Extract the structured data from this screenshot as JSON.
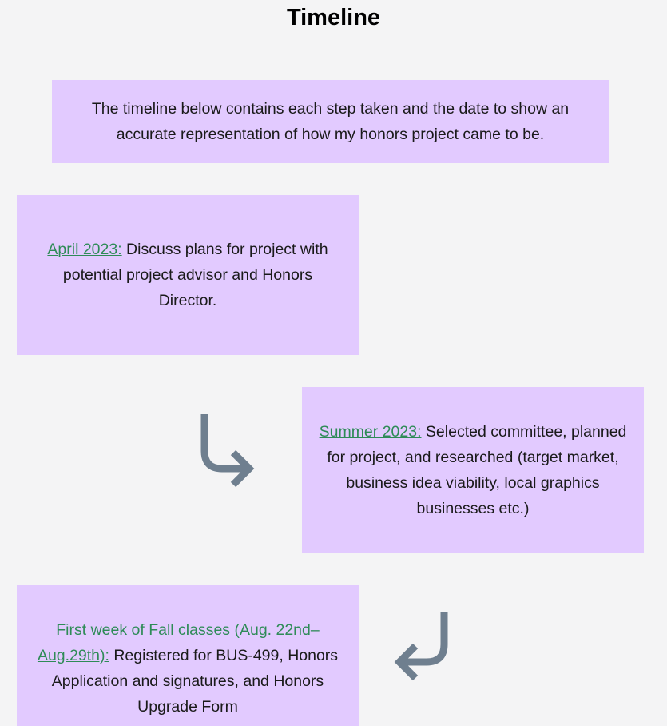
{
  "page": {
    "title": "Timeline"
  },
  "intro": {
    "text": "The timeline below contains each step taken and the date to show an accurate representation of how my honors project came to be."
  },
  "steps": [
    {
      "date": "April 2023:",
      "text": " Discuss plans for project with potential project advisor and Honors Director."
    },
    {
      "date": "Summer 2023:",
      "text": " Selected committee, planned for project, and researched (target market, business idea viability, local graphics businesses etc.)"
    },
    {
      "date": "First week of Fall classes (Aug. 22nd–Aug.29th):",
      "text": " Registered for BUS-499, Honors Application and signatures, and Honors Upgrade Form"
    }
  ],
  "colors": {
    "background": "#f4f4f5",
    "box": "#e2caff",
    "link": "#2e8b57",
    "arrow": "#6f7f8f"
  },
  "icons": {
    "arrow_1": "curved-arrow-down-right-icon",
    "arrow_2": "curved-arrow-down-left-icon"
  }
}
